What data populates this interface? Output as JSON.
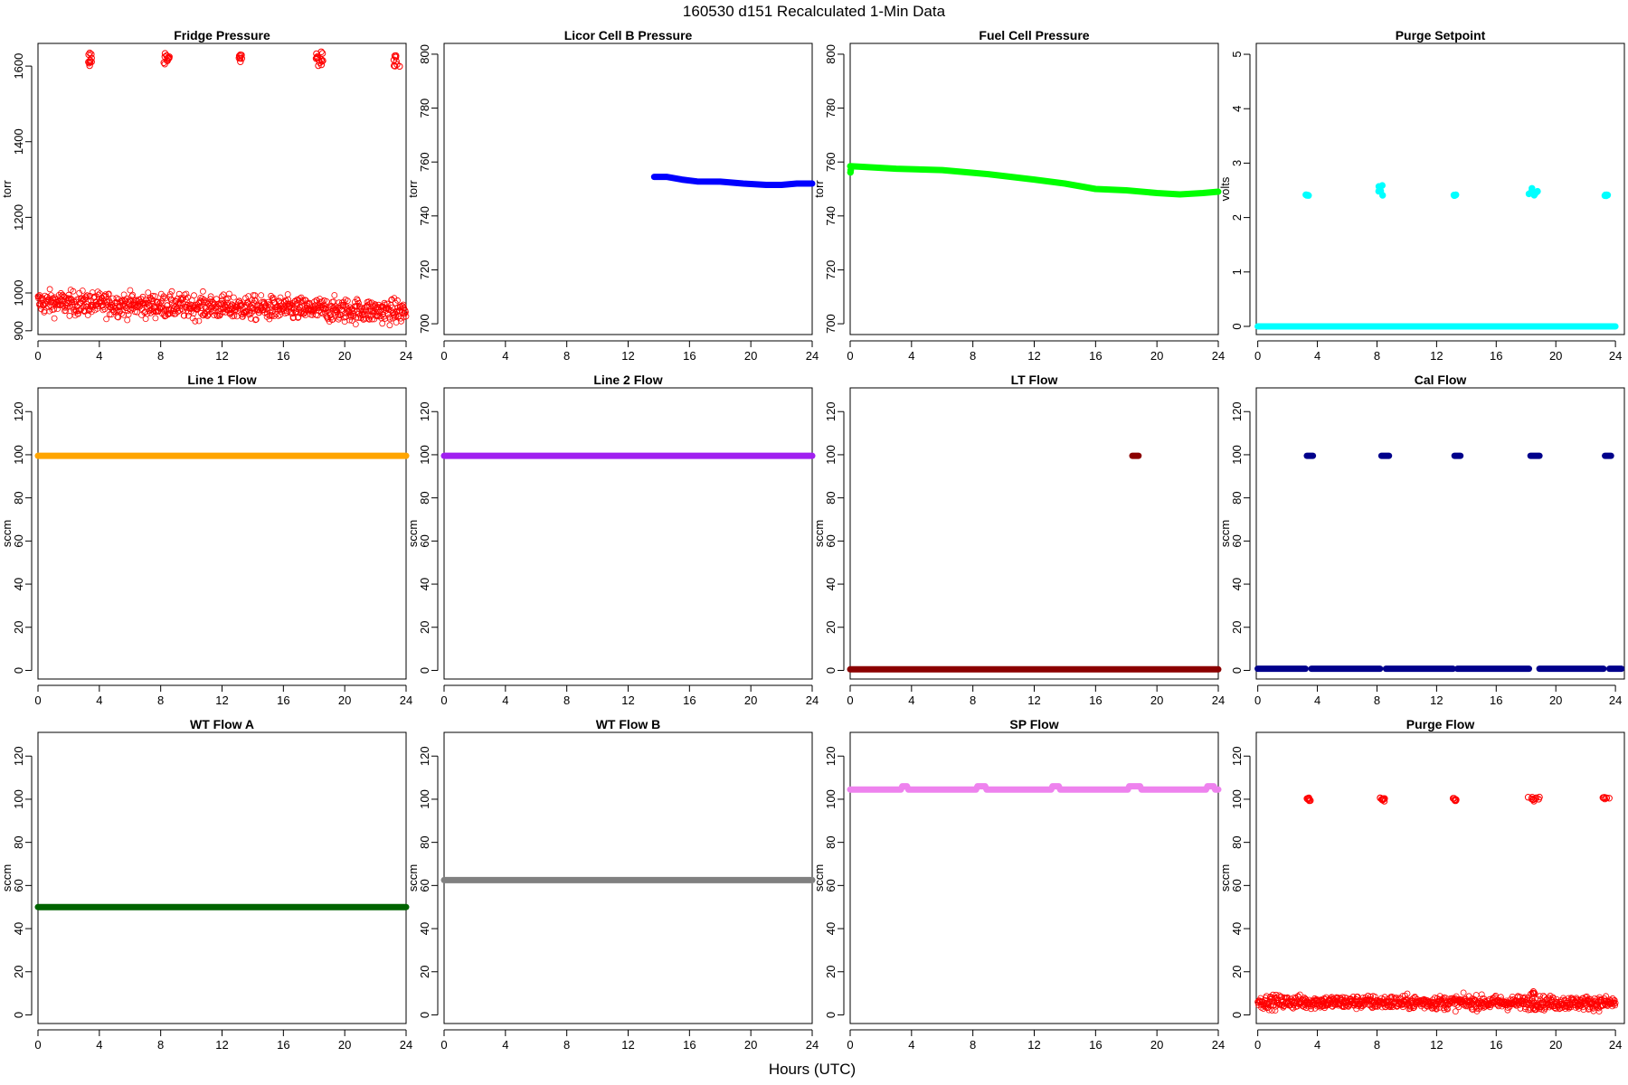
{
  "figure": {
    "title": "160530    d151    Recalculated 1-Min Data",
    "xlabel": "Hours (UTC)"
  },
  "chart_data": [
    {
      "type": "scatter",
      "title": "Fridge Pressure",
      "ylabel": "torr",
      "color": "#ff0000",
      "marker": "open-circle",
      "xlim": [
        0,
        24
      ],
      "ylim": [
        890,
        1660
      ],
      "xticks": [
        0,
        4,
        8,
        12,
        16,
        20,
        24
      ],
      "yticks": [
        900,
        1000,
        1200,
        1400,
        1600
      ],
      "series": [
        {
          "kind": "noise",
          "x": [
            0,
            24
          ],
          "y": [
            975,
            950
          ],
          "jitter": 22,
          "count": 900
        },
        {
          "kind": "cluster",
          "x": [
            3.2,
            3.5
          ],
          "y": [
            1600,
            1640
          ],
          "count": 10
        },
        {
          "kind": "cluster",
          "x": [
            8.2,
            8.6
          ],
          "y": [
            1595,
            1640
          ],
          "count": 12
        },
        {
          "kind": "cluster",
          "x": [
            13.1,
            13.3
          ],
          "y": [
            1605,
            1630
          ],
          "count": 8
        },
        {
          "kind": "cluster",
          "x": [
            18.1,
            18.6
          ],
          "y": [
            1595,
            1640
          ],
          "count": 14
        },
        {
          "kind": "cluster",
          "x": [
            23.2,
            23.6
          ],
          "y": [
            1598,
            1630
          ],
          "count": 9
        }
      ]
    },
    {
      "type": "scatter",
      "title": "Licor Cell B Pressure",
      "ylabel": "torr",
      "color": "#0000ff",
      "marker": "dense-line",
      "xlim": [
        0,
        24
      ],
      "ylim": [
        696,
        804
      ],
      "xticks": [
        0,
        4,
        8,
        12,
        16,
        20,
        24
      ],
      "yticks": [
        700,
        720,
        740,
        760,
        780,
        800
      ],
      "series": [
        {
          "kind": "line",
          "points": [
            [
              13.7,
              754.5
            ],
            [
              14.5,
              754.5
            ],
            [
              15.5,
              753.5
            ],
            [
              16.5,
              752.8
            ],
            [
              18,
              752.7
            ],
            [
              19.5,
              752
            ],
            [
              21,
              751.5
            ],
            [
              22,
              751.5
            ],
            [
              23,
              752
            ],
            [
              24,
              752
            ]
          ]
        }
      ]
    },
    {
      "type": "scatter",
      "title": "Fuel Cell Pressure",
      "ylabel": "torr",
      "color": "#00ff00",
      "marker": "dense-line",
      "xlim": [
        0,
        24
      ],
      "ylim": [
        696,
        804
      ],
      "xticks": [
        0,
        4,
        8,
        12,
        16,
        20,
        24
      ],
      "yticks": [
        700,
        720,
        740,
        760,
        780,
        800
      ],
      "series": [
        {
          "kind": "line",
          "points": [
            [
              0,
              758.5
            ],
            [
              3,
              757.5
            ],
            [
              6,
              757
            ],
            [
              9,
              755.5
            ],
            [
              12,
              753.5
            ],
            [
              14,
              752
            ],
            [
              16,
              750
            ],
            [
              18,
              749.5
            ],
            [
              20,
              748.5
            ],
            [
              21.5,
              748
            ],
            [
              23,
              748.5
            ],
            [
              24,
              749
            ]
          ]
        },
        {
          "kind": "cluster",
          "x": [
            0,
            0.1
          ],
          "y": [
            756,
            757
          ],
          "count": 2
        }
      ]
    },
    {
      "type": "scatter",
      "title": "Purge Setpoint",
      "ylabel": "volts",
      "color": "#00ffff",
      "marker": "filled-circle",
      "xlim": [
        -0.1,
        24.6
      ],
      "ylim": [
        -0.15,
        5.2
      ],
      "xticks": [
        0,
        4,
        8,
        12,
        16,
        20,
        24
      ],
      "yticks": [
        0,
        1,
        2,
        3,
        4,
        5
      ],
      "series": [
        {
          "kind": "line",
          "points": [
            [
              0,
              0
            ],
            [
              24,
              0
            ]
          ]
        },
        {
          "kind": "cluster",
          "x": [
            3.2,
            3.5
          ],
          "y": [
            2.4,
            2.42
          ],
          "count": 5
        },
        {
          "kind": "cluster",
          "x": [
            8.1,
            8.4
          ],
          "y": [
            2.4,
            2.6
          ],
          "count": 7
        },
        {
          "kind": "cluster",
          "x": [
            13.1,
            13.3
          ],
          "y": [
            2.4,
            2.42
          ],
          "count": 5
        },
        {
          "kind": "cluster",
          "x": [
            18.1,
            18.9
          ],
          "y": [
            2.4,
            2.62
          ],
          "count": 7
        },
        {
          "kind": "cluster",
          "x": [
            23.2,
            23.5
          ],
          "y": [
            2.4,
            2.42
          ],
          "count": 5
        }
      ]
    },
    {
      "type": "scatter",
      "title": "Line 1 Flow",
      "ylabel": "sccm",
      "color": "#ffa500",
      "marker": "dense-line",
      "xlim": [
        0,
        24
      ],
      "ylim": [
        -4,
        131
      ],
      "xticks": [
        0,
        4,
        8,
        12,
        16,
        20,
        24
      ],
      "yticks": [
        0,
        20,
        40,
        60,
        80,
        100,
        120
      ],
      "series": [
        {
          "kind": "line",
          "points": [
            [
              0,
              99.5
            ],
            [
              24,
              99.5
            ]
          ]
        }
      ]
    },
    {
      "type": "scatter",
      "title": "Line 2 Flow",
      "ylabel": "sccm",
      "color": "#a020f0",
      "marker": "dense-line",
      "xlim": [
        0,
        24
      ],
      "ylim": [
        -4,
        131
      ],
      "xticks": [
        0,
        4,
        8,
        12,
        16,
        20,
        24
      ],
      "yticks": [
        0,
        20,
        40,
        60,
        80,
        100,
        120
      ],
      "series": [
        {
          "kind": "line",
          "points": [
            [
              0,
              99.5
            ],
            [
              24,
              99.5
            ]
          ]
        }
      ]
    },
    {
      "type": "scatter",
      "title": "LT Flow",
      "ylabel": "sccm",
      "color": "#8b0000",
      "marker": "dense-line",
      "xlim": [
        0,
        24
      ],
      "ylim": [
        -4,
        131
      ],
      "xticks": [
        0,
        4,
        8,
        12,
        16,
        20,
        24
      ],
      "yticks": [
        0,
        20,
        40,
        60,
        80,
        100,
        120
      ],
      "series": [
        {
          "kind": "line",
          "points": [
            [
              0,
              0.5
            ],
            [
              24,
              0.5
            ]
          ]
        },
        {
          "kind": "line",
          "points": [
            [
              18.4,
              99.5
            ],
            [
              18.8,
              99.5
            ]
          ]
        }
      ]
    },
    {
      "type": "scatter",
      "title": "Cal Flow",
      "ylabel": "sccm",
      "color": "#00008b",
      "marker": "dense-line",
      "xlim": [
        -0.1,
        24.6
      ],
      "ylim": [
        -4,
        131
      ],
      "xticks": [
        0,
        4,
        8,
        12,
        16,
        20,
        24
      ],
      "yticks": [
        0,
        20,
        40,
        60,
        80,
        100,
        120
      ],
      "series": [
        {
          "kind": "line",
          "points": [
            [
              0,
              0.8
            ],
            [
              3.2,
              0.8
            ]
          ]
        },
        {
          "kind": "line",
          "points": [
            [
              3.6,
              0.8
            ],
            [
              8.2,
              0.8
            ]
          ]
        },
        {
          "kind": "line",
          "points": [
            [
              8.6,
              0.8
            ],
            [
              13.1,
              0.8
            ]
          ]
        },
        {
          "kind": "line",
          "points": [
            [
              13.4,
              0.8
            ],
            [
              18.2,
              0.8
            ]
          ]
        },
        {
          "kind": "line",
          "points": [
            [
              18.9,
              0.8
            ],
            [
              23.2,
              0.8
            ]
          ]
        },
        {
          "kind": "line",
          "points": [
            [
              23.6,
              0.8
            ],
            [
              24.4,
              0.8
            ]
          ]
        },
        {
          "kind": "line",
          "points": [
            [
              3.3,
              99.5
            ],
            [
              3.7,
              99.5
            ]
          ]
        },
        {
          "kind": "line",
          "points": [
            [
              8.3,
              99.5
            ],
            [
              8.8,
              99.5
            ]
          ]
        },
        {
          "kind": "line",
          "points": [
            [
              13.2,
              99.5
            ],
            [
              13.6,
              99.5
            ]
          ]
        },
        {
          "kind": "line",
          "points": [
            [
              18.3,
              99.5
            ],
            [
              18.9,
              99.5
            ]
          ]
        },
        {
          "kind": "line",
          "points": [
            [
              23.3,
              99.5
            ],
            [
              23.7,
              99.5
            ]
          ]
        }
      ]
    },
    {
      "type": "scatter",
      "title": "WT Flow A",
      "ylabel": "sccm",
      "color": "#006400",
      "marker": "dense-line",
      "xlim": [
        0,
        24
      ],
      "ylim": [
        -4,
        131
      ],
      "xticks": [
        0,
        4,
        8,
        12,
        16,
        20,
        24
      ],
      "yticks": [
        0,
        20,
        40,
        60,
        80,
        100,
        120
      ],
      "series": [
        {
          "kind": "line",
          "points": [
            [
              0,
              50
            ],
            [
              24,
              50
            ]
          ]
        }
      ]
    },
    {
      "type": "scatter",
      "title": "WT Flow B",
      "ylabel": "sccm",
      "color": "#808080",
      "marker": "dense-line",
      "xlim": [
        0,
        24
      ],
      "ylim": [
        -4,
        131
      ],
      "xticks": [
        0,
        4,
        8,
        12,
        16,
        20,
        24
      ],
      "yticks": [
        0,
        20,
        40,
        60,
        80,
        100,
        120
      ],
      "series": [
        {
          "kind": "line",
          "points": [
            [
              0,
              62.5
            ],
            [
              24,
              62.5
            ]
          ]
        }
      ]
    },
    {
      "type": "scatter",
      "title": "SP Flow",
      "ylabel": "sccm",
      "color": "#ee82ee",
      "marker": "dense-line",
      "xlim": [
        0,
        24
      ],
      "ylim": [
        -4,
        131
      ],
      "xticks": [
        0,
        4,
        8,
        12,
        16,
        20,
        24
      ],
      "yticks": [
        0,
        20,
        40,
        60,
        80,
        100,
        120
      ],
      "series": [
        {
          "kind": "line",
          "points": [
            [
              0,
              104.5
            ],
            [
              3.3,
              104.5
            ],
            [
              3.4,
              106
            ],
            [
              3.7,
              106
            ],
            [
              3.8,
              104.5
            ],
            [
              8.2,
              104.5
            ],
            [
              8.3,
              106
            ],
            [
              8.8,
              106
            ],
            [
              8.9,
              104.5
            ],
            [
              13.1,
              104.5
            ],
            [
              13.2,
              106
            ],
            [
              13.6,
              106
            ],
            [
              13.7,
              104.5
            ],
            [
              18.1,
              104.5
            ],
            [
              18.2,
              106
            ],
            [
              18.9,
              106
            ],
            [
              19,
              104.5
            ],
            [
              23.2,
              104.5
            ],
            [
              23.3,
              106
            ],
            [
              23.7,
              106
            ],
            [
              23.8,
              104.5
            ],
            [
              24,
              104.5
            ]
          ]
        }
      ]
    },
    {
      "type": "scatter",
      "title": "Purge Flow",
      "ylabel": "sccm",
      "color": "#ff0000",
      "marker": "open-circle",
      "xlim": [
        -0.1,
        24.6
      ],
      "ylim": [
        -4,
        131
      ],
      "xticks": [
        0,
        4,
        8,
        12,
        16,
        20,
        24
      ],
      "yticks": [
        0,
        20,
        40,
        60,
        80,
        100,
        120
      ],
      "series": [
        {
          "kind": "noise",
          "x": [
            0,
            24
          ],
          "y": [
            6,
            5.5
          ],
          "jitter": 2.2,
          "count": 900
        },
        {
          "kind": "cluster",
          "x": [
            18.3,
            18.6
          ],
          "y": [
            9,
            11
          ],
          "count": 6
        },
        {
          "kind": "cluster",
          "x": [
            3.3,
            3.6
          ],
          "y": [
            99,
            101
          ],
          "count": 8
        },
        {
          "kind": "cluster",
          "x": [
            8.1,
            8.6
          ],
          "y": [
            99,
            101
          ],
          "count": 10
        },
        {
          "kind": "cluster",
          "x": [
            13.1,
            13.4
          ],
          "y": [
            99,
            100.5
          ],
          "count": 7
        },
        {
          "kind": "cluster",
          "x": [
            18.1,
            18.9
          ],
          "y": [
            99,
            101
          ],
          "count": 10
        },
        {
          "kind": "cluster",
          "x": [
            23.1,
            23.6
          ],
          "y": [
            99.5,
            101
          ],
          "count": 7
        }
      ]
    }
  ]
}
